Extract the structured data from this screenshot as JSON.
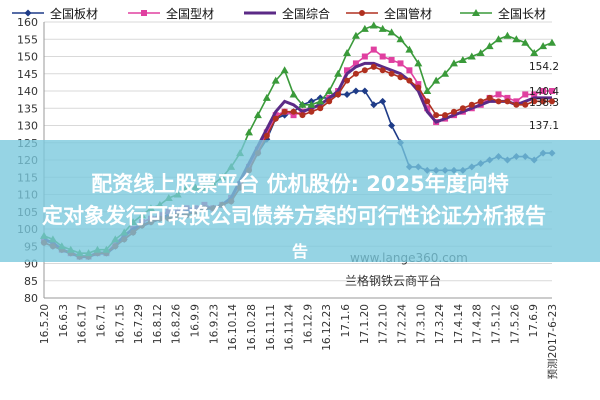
{
  "overlay": {
    "line1": "配资线上股票平台 优机股份: 2025年度向特",
    "line2": "定对象发行可转换公司债券方案的可行性论证分析报告",
    "line3": "告"
  },
  "chart_data": {
    "type": "line",
    "title": "",
    "xlabel": "",
    "ylabel": "",
    "ylim": [
      80,
      160
    ],
    "yticks": [
      80,
      85,
      90,
      95,
      100,
      105,
      110,
      115,
      120,
      125,
      130,
      135,
      140,
      145,
      150,
      155,
      160
    ],
    "xticks": [
      "16.5.20",
      "16.6.3",
      "16.6.17",
      "16.7.1",
      "16.7.15",
      "16.7.29",
      "16.8.12",
      "16.8.26",
      "16.9.9",
      "16.9.23",
      "16.10.14",
      "16.10.28",
      "16.11.11",
      "16.11.24",
      "16.12.9",
      "16.12.23",
      "17.1.6",
      "17.1.20",
      "17.2.10",
      "17.2.24",
      "17.3.10",
      "17.3.24",
      "17.4.14",
      "17.4.28",
      "17.5.12",
      "17.5.26",
      "17.6.9",
      "预测2017-6-23"
    ],
    "grid": true,
    "legend_position": "top",
    "watermark": [
      "www.lange360.com",
      "兰格钢铁云商平台"
    ],
    "end_labels": [
      "154.2",
      "140.4",
      "138.3",
      "137.1"
    ],
    "n_points": 58,
    "series": [
      {
        "name": "全国板材",
        "color": "#1f3c88",
        "marker": "diamond",
        "values": [
          96,
          95,
          94,
          93,
          92,
          92,
          93,
          93,
          95,
          97,
          99,
          101,
          102,
          103,
          104,
          104,
          105,
          105,
          106,
          106,
          107,
          108,
          112,
          118,
          122,
          126,
          132,
          133,
          134,
          136,
          137,
          138,
          138,
          139,
          139,
          140,
          140,
          136,
          137,
          130,
          125,
          118,
          118,
          117,
          117,
          117,
          117,
          117,
          118,
          119,
          120,
          121,
          120,
          121,
          121,
          120,
          122,
          122
        ]
      },
      {
        "name": "全国型材",
        "color": "#e040a0",
        "marker": "square",
        "values": [
          97,
          96,
          94,
          93,
          92,
          92,
          93,
          93,
          96,
          98,
          100,
          102,
          103,
          104,
          105,
          105,
          106,
          106,
          107,
          106,
          107,
          109,
          113,
          118,
          123,
          128,
          133,
          134,
          133,
          134,
          135,
          136,
          138,
          140,
          146,
          148,
          150,
          152,
          150,
          149,
          148,
          146,
          142,
          135,
          131,
          132,
          133,
          134,
          135,
          136,
          138,
          139,
          138,
          137,
          139,
          139,
          140,
          140
        ]
      },
      {
        "name": "全国综合",
        "color": "#5b2a86",
        "marker": "none",
        "values": [
          97,
          96,
          94,
          93,
          92,
          92,
          93,
          93,
          95,
          98,
          100,
          101,
          102,
          103,
          104,
          104,
          105,
          105,
          106,
          106,
          107,
          109,
          114,
          119,
          124,
          129,
          134,
          137,
          136,
          134,
          135,
          136,
          138,
          140,
          145,
          147,
          148,
          148,
          147,
          146,
          145,
          143,
          140,
          134,
          131,
          132,
          133,
          134,
          135,
          136,
          137,
          137,
          137,
          136,
          137,
          138,
          138,
          138
        ]
      },
      {
        "name": "全国管材",
        "color": "#b03020",
        "marker": "circle",
        "values": [
          96,
          95,
          94,
          93,
          92,
          92,
          93,
          93,
          95,
          97,
          99,
          101,
          102,
          103,
          103,
          104,
          104,
          105,
          106,
          106,
          107,
          108,
          112,
          117,
          122,
          127,
          132,
          134,
          134,
          133,
          134,
          135,
          137,
          139,
          143,
          145,
          146,
          147,
          146,
          145,
          144,
          143,
          141,
          137,
          133,
          133,
          134,
          135,
          136,
          137,
          138,
          137,
          137,
          136,
          136,
          137,
          137,
          137
        ]
      },
      {
        "name": "全国长材",
        "color": "#3a9a3a",
        "marker": "triangle",
        "values": [
          98,
          97,
          95,
          94,
          93,
          93,
          94,
          94,
          97,
          99,
          102,
          104,
          106,
          107,
          109,
          110,
          112,
          112,
          112,
          113,
          115,
          118,
          122,
          128,
          133,
          138,
          143,
          146,
          139,
          136,
          136,
          137,
          140,
          145,
          151,
          156,
          158,
          159,
          158,
          157,
          155,
          152,
          148,
          140,
          143,
          145,
          148,
          149,
          150,
          151,
          153,
          155,
          156,
          155,
          154,
          151,
          153,
          154
        ]
      }
    ]
  }
}
